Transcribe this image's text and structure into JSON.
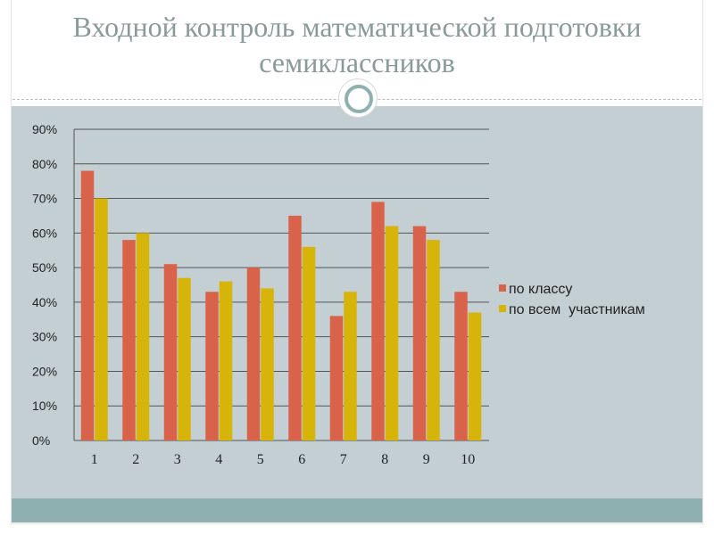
{
  "slide": {
    "title_line1": "Входной контроль математической подготовки",
    "title_line2": "семиклассников"
  },
  "colors": {
    "series1": "#d9634a",
    "series2": "#d6b40a",
    "panel": "#c4cfd3",
    "accent": "#8fb0b0"
  },
  "chart_data": {
    "type": "bar",
    "categories": [
      "1",
      "2",
      "3",
      "4",
      "5",
      "6",
      "7",
      "8",
      "9",
      "10"
    ],
    "series": [
      {
        "name": "по классу",
        "values": [
          78,
          58,
          51,
          43,
          50,
          65,
          36,
          69,
          62,
          43
        ]
      },
      {
        "name": "по всем  участникам",
        "values": [
          70,
          60,
          47,
          46,
          44,
          56,
          43,
          62,
          58,
          37
        ]
      }
    ],
    "yticks": [
      "0%",
      "10%",
      "20%",
      "30%",
      "40%",
      "50%",
      "60%",
      "70%",
      "80%",
      "90%"
    ],
    "ylim": [
      0,
      90
    ],
    "grid": true,
    "legend": "right"
  }
}
